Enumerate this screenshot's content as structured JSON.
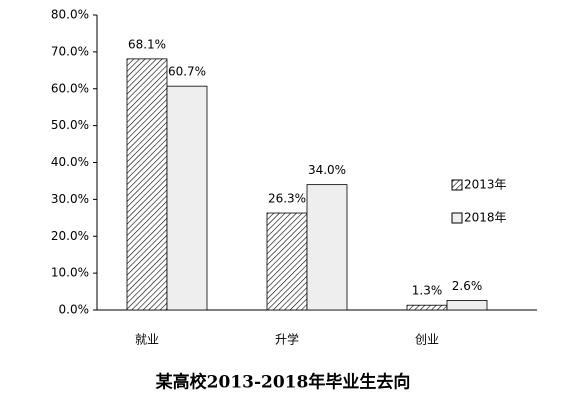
{
  "chart_data": {
    "type": "bar",
    "title": "某高校2013-2018年毕业生去向",
    "categories": [
      "就业",
      "升学",
      "创业"
    ],
    "series": [
      {
        "name": "2013年",
        "color": "#000000",
        "hatch": "diagonal",
        "values": [
          68.1,
          26.3,
          1.3
        ],
        "value_labels": [
          "68.1%",
          "26.3%",
          "1.3%"
        ]
      },
      {
        "name": "2018年",
        "color": "#eeeeee",
        "values": [
          60.7,
          34.0,
          2.6
        ],
        "value_labels": [
          "60.7%",
          "34.0%",
          "2.6%"
        ]
      }
    ],
    "ylim": [
      0,
      80
    ],
    "yticks": [
      {
        "value": 0,
        "label": "0.0%"
      },
      {
        "value": 10,
        "label": "10.0%"
      },
      {
        "value": 20,
        "label": "20.0%"
      },
      {
        "value": 30,
        "label": "30.0%"
      },
      {
        "value": 40,
        "label": "40.0%"
      },
      {
        "value": 50,
        "label": "50.0%"
      },
      {
        "value": 60,
        "label": "60.0%"
      },
      {
        "value": 70,
        "label": "70.0%"
      },
      {
        "value": 80,
        "label": "80.0%"
      }
    ],
    "grid": false,
    "legend": "right"
  }
}
